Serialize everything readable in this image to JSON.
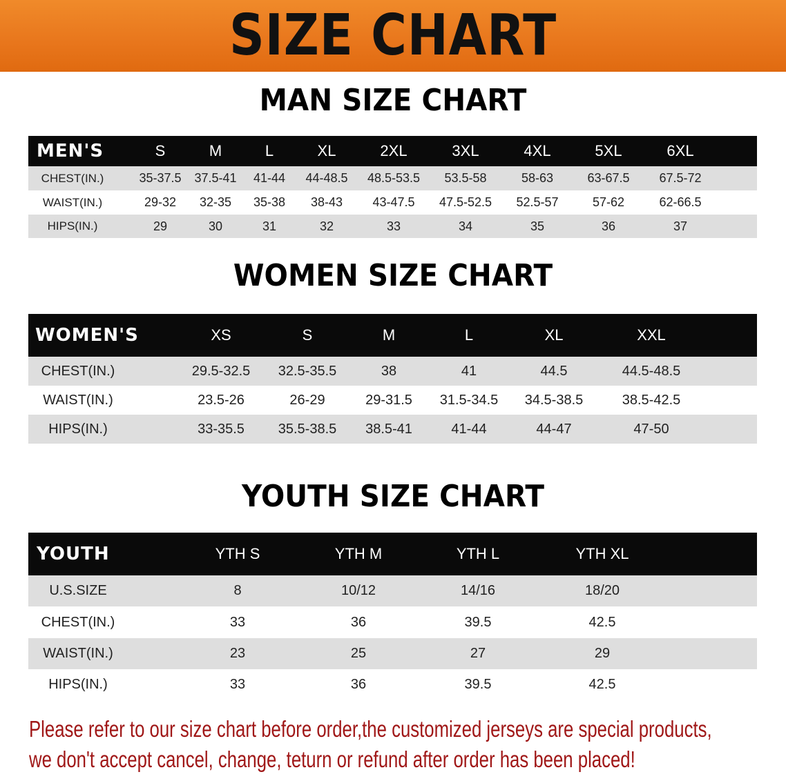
{
  "banner": {
    "title": "SIZE CHART",
    "color": "#e8761c"
  },
  "men": {
    "title": "MAN SIZE CHART",
    "header": [
      "MEN'S",
      "S",
      "M",
      "L",
      "XL",
      "2XL",
      "3XL",
      "4XL",
      "5XL",
      "6XL"
    ],
    "rows": [
      [
        "CHEST(IN.)",
        "35-37.5",
        "37.5-41",
        "41-44",
        "44-48.5",
        "48.5-53.5",
        "53.5-58",
        "58-63",
        "63-67.5",
        "67.5-72"
      ],
      [
        "WAIST(IN.)",
        "29-32",
        "32-35",
        "35-38",
        "38-43",
        "43-47.5",
        "47.5-52.5",
        "52.5-57",
        "57-62",
        "62-66.5"
      ],
      [
        "HIPS(IN.)",
        "29",
        "30",
        "31",
        "32",
        "33",
        "34",
        "35",
        "36",
        "37"
      ]
    ]
  },
  "women": {
    "title": "WOMEN SIZE CHART",
    "header": [
      "WOMEN'S",
      "XS",
      "S",
      "M",
      "L",
      "XL",
      "XXL"
    ],
    "rows": [
      [
        "CHEST(IN.)",
        "29.5-32.5",
        "32.5-35.5",
        "38",
        "41",
        "44.5",
        "44.5-48.5"
      ],
      [
        "WAIST(IN.)",
        "23.5-26",
        "26-29",
        "29-31.5",
        "31.5-34.5",
        "34.5-38.5",
        "38.5-42.5"
      ],
      [
        "HIPS(IN.)",
        "33-35.5",
        "35.5-38.5",
        "38.5-41",
        "41-44",
        "44-47",
        "47-50"
      ]
    ]
  },
  "youth": {
    "title": "YOUTH SIZE CHART",
    "header": [
      "YOUTH",
      "YTH S",
      "YTH M",
      "YTH L",
      "YTH XL"
    ],
    "rows": [
      [
        "U.S.SIZE",
        "8",
        "10/12",
        "14/16",
        "18/20"
      ],
      [
        "CHEST(IN.)",
        "33",
        "36",
        "39.5",
        "42.5"
      ],
      [
        "WAIST(IN.)",
        "23",
        "25",
        "27",
        "29"
      ],
      [
        "HIPS(IN.)",
        "33",
        "36",
        "39.5",
        "42.5"
      ]
    ]
  },
  "footer": {
    "line1": "Please refer to our size chart before order,the customized jerseys are special products,",
    "line2": "we don't accept cancel, change, teturn or refund after order has been placed!",
    "color": "#a01818"
  }
}
